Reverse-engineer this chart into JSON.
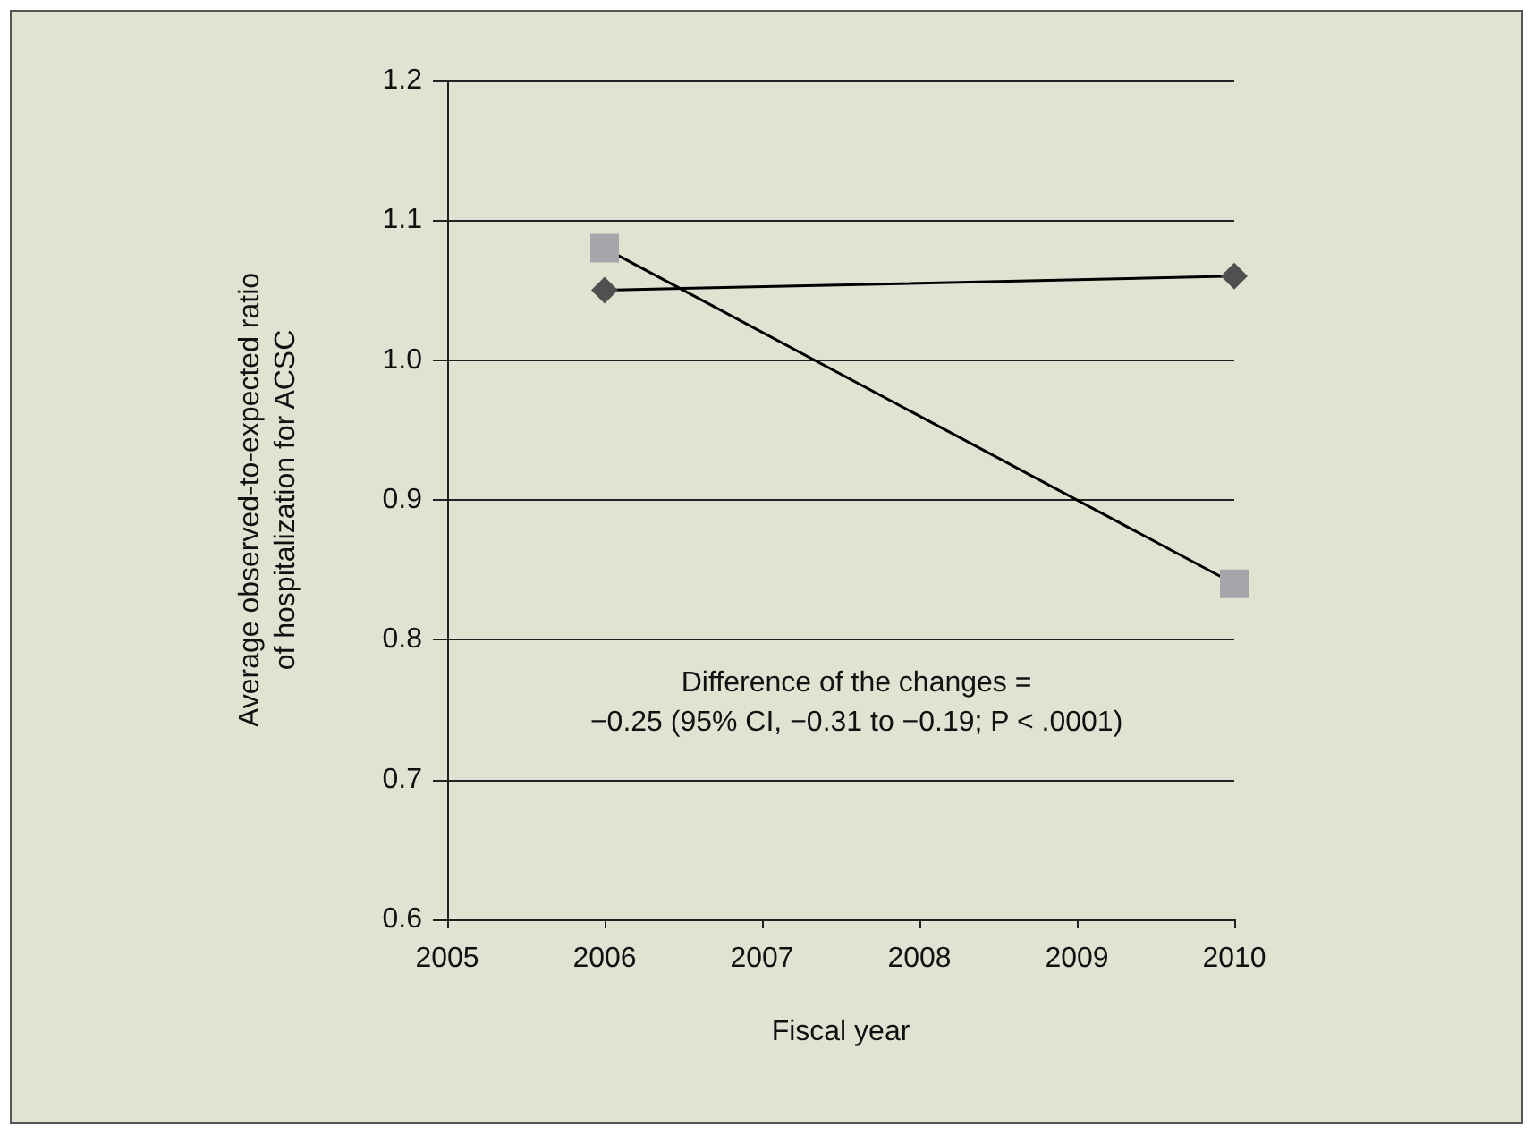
{
  "chart_data": {
    "type": "line",
    "xlabel": "Fiscal year",
    "ylabel": "Average observed-to-expected ratio\nof hospitalization for ACSC",
    "x": [
      2006,
      2010
    ],
    "series": [
      {
        "color": "#a6a6aa",
        "marker": "square",
        "values": [
          1.08,
          0.84
        ]
      },
      {
        "color": "#505050",
        "marker": "diamond",
        "values": [
          1.05,
          1.06
        ]
      }
    ],
    "xlim": [
      2005,
      2010
    ],
    "xticks": [
      2005,
      2006,
      2007,
      2008,
      2009,
      2010
    ],
    "ylim": [
      0.6,
      1.2
    ],
    "yticks": [
      0.6,
      0.7,
      0.8,
      0.9,
      {
        "value": 1,
        "label": "1.0"
      },
      1.1,
      1.2
    ],
    "grid": "y",
    "line_style": "solid",
    "annotations": [
      "Difference of the changes =\n−0.25 (95% CI, −0.31 to −0.19; P < .0001)"
    ]
  }
}
